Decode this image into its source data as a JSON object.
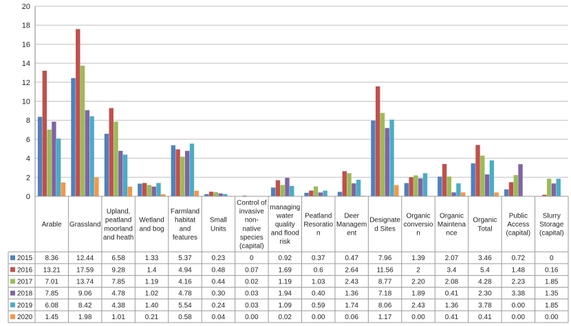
{
  "chart_data": {
    "type": "bar",
    "ylim": [
      0,
      20
    ],
    "yticks": [
      0,
      2,
      4,
      6,
      8,
      10,
      12,
      14,
      16,
      18,
      20
    ],
    "grid": "horizontal",
    "legend": "data-table",
    "categories": [
      [
        "Arable"
      ],
      [
        "Grassland"
      ],
      [
        "Upland,",
        "peatland",
        "moorland",
        "and heath"
      ],
      [
        "Wetland",
        "and bog"
      ],
      [
        "Farmland",
        "habitat",
        "and",
        "features"
      ],
      [
        "Small",
        "Units"
      ],
      [
        "Control of",
        "invasive",
        "non-",
        "native",
        "species",
        "(capital)"
      ],
      [
        "managing",
        "water",
        "quality",
        "and flood",
        "risk"
      ],
      [
        "Peatland",
        "Resoratio",
        "n"
      ],
      [
        "Deer",
        "Managem",
        "ent"
      ],
      [
        "Designate",
        "d Sites"
      ],
      [
        "Organic",
        "conversio",
        "n"
      ],
      [
        "Organic",
        "Maintena",
        "nce"
      ],
      [
        "Organic",
        "Total"
      ],
      [
        "Public",
        "Access",
        "(capital)"
      ],
      [
        "Slurry",
        "Storage",
        "(capital)"
      ]
    ],
    "series": [
      {
        "name": "2015",
        "color": "#4F81BD",
        "values": [
          8.36,
          12.44,
          6.58,
          1.33,
          5.37,
          0.23,
          0,
          0.92,
          0.37,
          0.47,
          7.96,
          1.39,
          2.07,
          3.46,
          0.72,
          0
        ],
        "labels": [
          "8.36",
          "12.44",
          "6.58",
          "1.33",
          "5.37",
          "0.23",
          "0",
          "0.92",
          "0.37",
          "0.47",
          "7.96",
          "1.39",
          "2.07",
          "3.46",
          "0.72",
          "0"
        ]
      },
      {
        "name": "2016",
        "color": "#C0504D",
        "values": [
          13.21,
          17.59,
          9.28,
          1.4,
          4.94,
          0.48,
          0.07,
          1.69,
          0.6,
          2.64,
          11.56,
          2,
          3.4,
          5.4,
          1.48,
          0.16
        ],
        "labels": [
          "13.21",
          "17.59",
          "9.28",
          "1.4",
          "4.94",
          "0.48",
          "0.07",
          "1.69",
          "0.6",
          "2.64",
          "11.56",
          "2",
          "3.4",
          "5.4",
          "1.48",
          "0.16"
        ]
      },
      {
        "name": "2017",
        "color": "#9BBB59",
        "values": [
          7.01,
          13.74,
          7.85,
          1.19,
          4.16,
          0.44,
          0.02,
          1.19,
          1.03,
          2.43,
          8.77,
          2.2,
          2.08,
          4.28,
          2.23,
          1.85
        ],
        "labels": [
          "7.01",
          "13.74",
          "7.85",
          "1.19",
          "4.16",
          "0.44",
          "0.02",
          "1.19",
          "1.03",
          "2.43",
          "8.77",
          "2.20",
          "2.08",
          "4.28",
          "2.23",
          "1.85"
        ]
      },
      {
        "name": "2018",
        "color": "#8064A2",
        "values": [
          7.85,
          9.06,
          4.78,
          1.02,
          4.78,
          0.3,
          0.03,
          1.94,
          0.4,
          1.36,
          7.18,
          1.89,
          0.41,
          2.3,
          3.38,
          1.35
        ],
        "labels": [
          "7.85",
          "9.06",
          "4.78",
          "1.02",
          "4.78",
          "0.30",
          "0.03",
          "1.94",
          "0.40",
          "1.36",
          "7.18",
          "1.89",
          "0.41",
          "2.30",
          "3.38",
          "1.35"
        ]
      },
      {
        "name": "2019",
        "color": "#4BACC6",
        "values": [
          6.08,
          8.42,
          4.38,
          1.4,
          5.54,
          0.24,
          0.03,
          1.09,
          0.59,
          1.74,
          8.06,
          2.43,
          1.36,
          3.78,
          0.0,
          1.85
        ],
        "labels": [
          "6.08",
          "8.42",
          "4.38",
          "1.40",
          "5.54",
          "0.24",
          "0.03",
          "1.09",
          "0.59",
          "1.74",
          "8.06",
          "2.43",
          "1.36",
          "3.78",
          "0.00",
          "1.85"
        ]
      },
      {
        "name": "2020",
        "color": "#F79646",
        "values": [
          1.45,
          1.98,
          1.01,
          0.21,
          0.58,
          0.04,
          0.0,
          0.02,
          0.0,
          0.06,
          1.17,
          0.0,
          0.41,
          0.41,
          0.0,
          0.0
        ],
        "labels": [
          "1.45",
          "1.98",
          "1.01",
          "0.21",
          "0.58",
          "0.04",
          "0.00",
          "0.02",
          "0.00",
          "0.06",
          "1.17",
          "0.00",
          "0.41",
          "0.41",
          "0.00",
          "0.00"
        ]
      }
    ]
  }
}
